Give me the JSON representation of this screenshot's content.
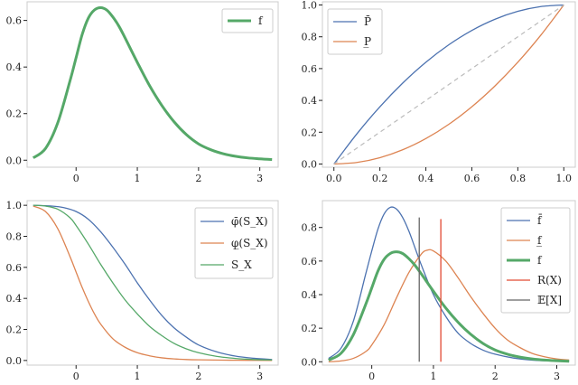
{
  "chart_data": [
    {
      "panel": "top-left",
      "type": "line",
      "xlim": [
        -0.8,
        3.3
      ],
      "ylim": [
        -0.03,
        0.68
      ],
      "xticks": [
        0,
        1,
        2,
        3
      ],
      "xtick_labels": [
        "0",
        "1",
        "2",
        "3"
      ],
      "yticks": [
        0.0,
        0.2,
        0.4,
        0.6
      ],
      "ytick_labels": [
        "0.0",
        "0.2",
        "0.4",
        "0.6"
      ],
      "grid": false,
      "legend_position": "top-right",
      "series": [
        {
          "name": "f",
          "color": "#55a868",
          "width": 3,
          "x": [
            -0.7,
            -0.5,
            -0.3,
            -0.1,
            0.0,
            0.1,
            0.2,
            0.3,
            0.4,
            0.5,
            0.6,
            0.7,
            0.8,
            1.0,
            1.2,
            1.4,
            1.6,
            1.8,
            2.0,
            2.2,
            2.4,
            2.6,
            2.8,
            3.0,
            3.2
          ],
          "y": [
            0.01,
            0.05,
            0.16,
            0.34,
            0.44,
            0.54,
            0.61,
            0.645,
            0.655,
            0.645,
            0.615,
            0.575,
            0.525,
            0.42,
            0.32,
            0.235,
            0.165,
            0.11,
            0.07,
            0.045,
            0.028,
            0.017,
            0.01,
            0.006,
            0.003
          ]
        }
      ]
    },
    {
      "panel": "top-right",
      "type": "line",
      "xlim": [
        -0.05,
        1.05
      ],
      "ylim": [
        -0.02,
        1.02
      ],
      "xticks": [
        0.0,
        0.2,
        0.4,
        0.6,
        0.8,
        1.0
      ],
      "xtick_labels": [
        "0.0",
        "0.2",
        "0.4",
        "0.6",
        "0.8",
        "1.0"
      ],
      "yticks": [
        0.0,
        0.2,
        0.4,
        0.6,
        0.8,
        1.0
      ],
      "ytick_labels": [
        "0.0",
        "0.2",
        "0.4",
        "0.6",
        "0.8",
        "1.0"
      ],
      "grid": false,
      "legend_position": "top-left",
      "series": [
        {
          "name": "P̄",
          "color": "#4c72b0",
          "width": 1.3,
          "x": [
            0.0,
            0.1,
            0.2,
            0.3,
            0.4,
            0.5,
            0.6,
            0.7,
            0.8,
            0.9,
            1.0
          ],
          "y": [
            0.0,
            0.19,
            0.36,
            0.51,
            0.64,
            0.75,
            0.84,
            0.91,
            0.96,
            0.99,
            1.0
          ]
        },
        {
          "name": "P̲",
          "color": "#dd8452",
          "width": 1.3,
          "x": [
            0.0,
            0.1,
            0.2,
            0.3,
            0.4,
            0.5,
            0.6,
            0.7,
            0.8,
            0.9,
            1.0
          ],
          "y": [
            0.0,
            0.01,
            0.04,
            0.09,
            0.16,
            0.25,
            0.36,
            0.49,
            0.64,
            0.81,
            1.0
          ]
        },
        {
          "name": "",
          "color": "#bbbbbb",
          "width": 1.2,
          "dashed": true,
          "x": [
            0.0,
            1.0
          ],
          "y": [
            0.0,
            1.0
          ]
        }
      ]
    },
    {
      "panel": "bottom-left",
      "type": "line",
      "xlim": [
        -0.8,
        3.3
      ],
      "ylim": [
        -0.03,
        1.03
      ],
      "xticks": [
        0,
        1,
        2,
        3
      ],
      "xtick_labels": [
        "0",
        "1",
        "2",
        "3"
      ],
      "yticks": [
        0.0,
        0.2,
        0.4,
        0.6,
        0.8,
        1.0
      ],
      "ytick_labels": [
        "0.0",
        "0.2",
        "0.4",
        "0.6",
        "0.8",
        "1.0"
      ],
      "grid": false,
      "legend_position": "top-right",
      "series": [
        {
          "name": "φ̄(S_X)",
          "color": "#4c72b0",
          "width": 1.3,
          "x": [
            -0.7,
            -0.4,
            -0.2,
            0.0,
            0.2,
            0.4,
            0.6,
            0.8,
            1.0,
            1.2,
            1.4,
            1.6,
            1.8,
            2.0,
            2.3,
            2.6,
            2.9,
            3.2
          ],
          "y": [
            1.0,
            0.995,
            0.985,
            0.96,
            0.91,
            0.83,
            0.73,
            0.62,
            0.5,
            0.39,
            0.29,
            0.21,
            0.15,
            0.1,
            0.055,
            0.028,
            0.014,
            0.006
          ]
        },
        {
          "name": "φ̲(S_X)",
          "color": "#dd8452",
          "width": 1.3,
          "x": [
            -0.7,
            -0.5,
            -0.3,
            -0.1,
            0.0,
            0.1,
            0.2,
            0.3,
            0.4,
            0.6,
            0.8,
            1.0,
            1.2,
            1.4,
            1.6,
            1.8,
            2.0,
            2.4,
            2.8,
            3.2
          ],
          "y": [
            0.995,
            0.96,
            0.85,
            0.67,
            0.57,
            0.47,
            0.38,
            0.3,
            0.235,
            0.14,
            0.085,
            0.05,
            0.03,
            0.017,
            0.01,
            0.006,
            0.004,
            0.002,
            0.001,
            0.0
          ]
        },
        {
          "name": "S_X",
          "color": "#55a868",
          "width": 1.3,
          "x": [
            -0.7,
            -0.5,
            -0.3,
            -0.1,
            0.0,
            0.2,
            0.4,
            0.6,
            0.8,
            1.0,
            1.2,
            1.4,
            1.6,
            1.8,
            2.0,
            2.3,
            2.6,
            2.9,
            3.2
          ],
          "y": [
            1.0,
            0.995,
            0.975,
            0.92,
            0.87,
            0.75,
            0.62,
            0.5,
            0.39,
            0.3,
            0.22,
            0.16,
            0.11,
            0.075,
            0.05,
            0.026,
            0.013,
            0.006,
            0.003
          ]
        }
      ]
    },
    {
      "panel": "bottom-right",
      "type": "line",
      "xlim": [
        -0.8,
        3.3
      ],
      "ylim": [
        -0.02,
        0.96
      ],
      "xticks": [
        0,
        1,
        2,
        3
      ],
      "xtick_labels": [
        "0",
        "1",
        "2",
        "3"
      ],
      "yticks": [
        0.0,
        0.2,
        0.4,
        0.6,
        0.8
      ],
      "ytick_labels": [
        "0.0",
        "0.2",
        "0.4",
        "0.6",
        "0.8"
      ],
      "grid": false,
      "legend_position": "top-right",
      "series": [
        {
          "name": "f̄",
          "color": "#4c72b0",
          "width": 1.3,
          "x": [
            -0.7,
            -0.5,
            -0.3,
            -0.1,
            0.0,
            0.1,
            0.2,
            0.3,
            0.4,
            0.5,
            0.6,
            0.7,
            0.8,
            1.0,
            1.2,
            1.4,
            1.6,
            1.8,
            2.0,
            2.3,
            2.6,
            3.0,
            3.2
          ],
          "y": [
            0.02,
            0.08,
            0.24,
            0.52,
            0.66,
            0.79,
            0.88,
            0.92,
            0.91,
            0.86,
            0.78,
            0.68,
            0.58,
            0.4,
            0.27,
            0.17,
            0.11,
            0.07,
            0.045,
            0.022,
            0.01,
            0.004,
            0.002
          ]
        },
        {
          "name": "f̲",
          "color": "#dd8452",
          "width": 1.3,
          "x": [
            -0.7,
            -0.5,
            -0.3,
            -0.1,
            0.0,
            0.2,
            0.4,
            0.6,
            0.8,
            0.9,
            1.0,
            1.2,
            1.4,
            1.6,
            1.8,
            2.0,
            2.2,
            2.4,
            2.6,
            2.8,
            3.0,
            3.2
          ],
          "y": [
            0.0,
            0.005,
            0.02,
            0.06,
            0.1,
            0.22,
            0.38,
            0.53,
            0.64,
            0.665,
            0.66,
            0.6,
            0.5,
            0.39,
            0.29,
            0.2,
            0.13,
            0.085,
            0.05,
            0.03,
            0.017,
            0.01
          ]
        },
        {
          "name": "f",
          "color": "#55a868",
          "width": 3,
          "x": [
            -0.7,
            -0.5,
            -0.3,
            -0.1,
            0.0,
            0.1,
            0.2,
            0.3,
            0.4,
            0.5,
            0.6,
            0.7,
            0.8,
            1.0,
            1.2,
            1.4,
            1.6,
            1.8,
            2.0,
            2.2,
            2.4,
            2.6,
            2.8,
            3.0,
            3.2
          ],
          "y": [
            0.01,
            0.05,
            0.16,
            0.34,
            0.44,
            0.54,
            0.61,
            0.645,
            0.655,
            0.645,
            0.615,
            0.575,
            0.525,
            0.42,
            0.32,
            0.235,
            0.165,
            0.11,
            0.07,
            0.045,
            0.028,
            0.017,
            0.01,
            0.006,
            0.003
          ]
        },
        {
          "name": "R(X)",
          "color": "#e24a33",
          "width": 1.3,
          "vertical": true,
          "x": [
            1.12,
            1.12
          ],
          "y": [
            0.0,
            0.85
          ]
        },
        {
          "name": "𝔼[X]",
          "color": "#666666",
          "width": 1.3,
          "vertical": true,
          "x": [
            0.77,
            0.77
          ],
          "y": [
            0.0,
            0.86
          ]
        }
      ]
    }
  ]
}
